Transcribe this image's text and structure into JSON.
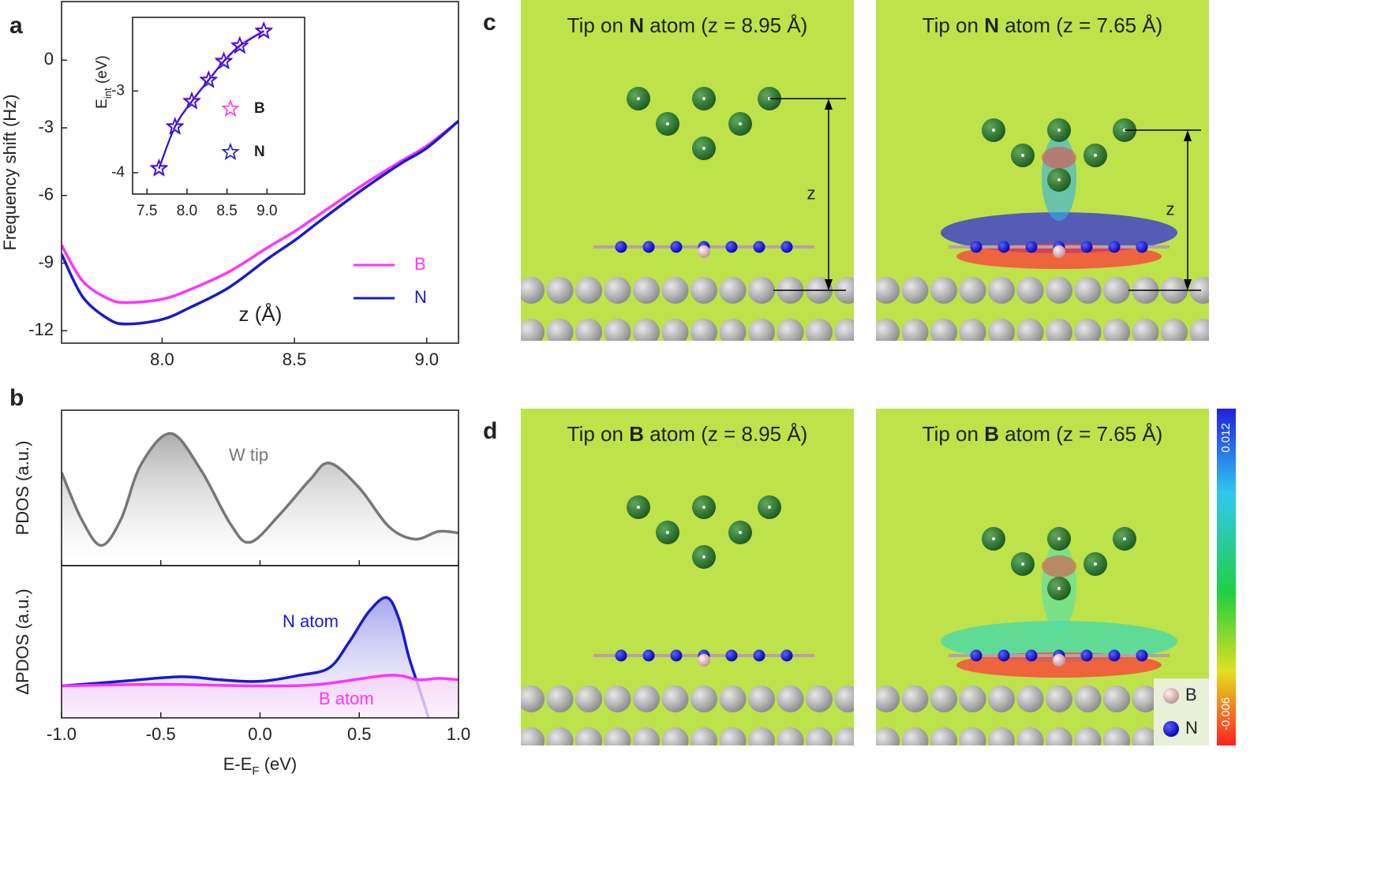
{
  "panel_labels": [
    "a",
    "b",
    "c",
    "d"
  ],
  "chart_data": [
    {
      "type": "line",
      "xlabel": "z (Å)",
      "ylabel": "Frequency shift (Hz)",
      "x": [
        7.62,
        7.7,
        7.8,
        7.87,
        8.0,
        8.1,
        8.25,
        8.4,
        8.5,
        8.6,
        8.75,
        8.9,
        9.0,
        9.12
      ],
      "series": [
        {
          "name": "B",
          "color": "#ff33ff",
          "values": [
            -8.2,
            -9.8,
            -10.6,
            -10.75,
            -10.6,
            -10.2,
            -9.4,
            -8.3,
            -7.6,
            -6.8,
            -5.6,
            -4.5,
            -3.8,
            -2.7
          ]
        },
        {
          "name": "N",
          "color": "#1a1acc",
          "values": [
            -8.6,
            -10.5,
            -11.5,
            -11.7,
            -11.5,
            -11.0,
            -10.1,
            -8.8,
            -8.0,
            -7.1,
            -5.8,
            -4.6,
            -3.9,
            -2.7
          ]
        }
      ],
      "xlim": [
        7.62,
        9.12
      ],
      "ylim": [
        -12.55,
        2.6
      ],
      "xticks": [
        {
          "value": 8.0,
          "label": "8.0"
        },
        8.5,
        {
          "value": 9.0,
          "label": "9.0"
        }
      ],
      "yticks": [
        0,
        -3,
        -6,
        -9,
        -12
      ],
      "legend": "lower right"
    },
    {
      "type": "line",
      "marker": "star",
      "ylabel": [
        "E",
        "int",
        " (eV)"
      ],
      "x": [
        7.65,
        7.85,
        8.06,
        8.27,
        8.46,
        8.66,
        8.96
      ],
      "series": [
        {
          "name": "B",
          "color": "#ff33ff",
          "values": [
            -3.94,
            -3.43,
            -3.12,
            -2.86,
            -2.63,
            -2.44,
            -2.26
          ]
        },
        {
          "name": "N",
          "color": "#1a1acc",
          "values": [
            -3.95,
            -3.44,
            -3.13,
            -2.87,
            -2.64,
            -2.45,
            -2.27
          ]
        }
      ],
      "xlim": [
        7.32,
        9.47
      ],
      "ylim": [
        -4.26,
        -2.1
      ],
      "xticks": [
        7.5,
        {
          "value": 8.0,
          "label": "8.0"
        },
        8.5,
        {
          "value": 9.0,
          "label": "9.0"
        }
      ],
      "yticks": [
        -3,
        -4
      ],
      "legend": "center right"
    },
    {
      "type": "area",
      "ylabel": "PDOS (a.u.)",
      "annotation": "W tip",
      "x": [
        -1.0,
        -0.9,
        -0.8,
        -0.7,
        -0.6,
        -0.45,
        -0.3,
        -0.15,
        -0.05,
        0.1,
        0.25,
        0.35,
        0.5,
        0.65,
        0.78,
        0.9,
        1.0
      ],
      "series": [
        {
          "name": "W tip",
          "color": "#777777",
          "values": [
            0.6,
            0.3,
            0.13,
            0.3,
            0.65,
            0.85,
            0.62,
            0.27,
            0.15,
            0.33,
            0.55,
            0.66,
            0.5,
            0.25,
            0.17,
            0.22,
            0.21
          ]
        }
      ],
      "xlim": [
        -1.0,
        1.0
      ],
      "ylim": [
        0,
        1
      ]
    },
    {
      "type": "area",
      "ylabel": "ΔPDOS (a.u.)",
      "xlabel": [
        "E-E",
        "F",
        " (eV)"
      ],
      "series": [
        {
          "name": "N atom",
          "color": "#1a1acc",
          "x": [
            -1.0,
            -0.7,
            -0.4,
            -0.2,
            0.0,
            0.2,
            0.35,
            0.45,
            0.55,
            0.64,
            0.7,
            0.75,
            0.8,
            0.85
          ],
          "values": [
            0.21,
            0.24,
            0.27,
            0.25,
            0.24,
            0.28,
            0.33,
            0.5,
            0.7,
            0.79,
            0.65,
            0.4,
            0.2,
            0.0
          ]
        },
        {
          "name": "B atom",
          "color": "#ff33ff",
          "x": [
            -1.0,
            -0.5,
            0.0,
            0.3,
            0.65,
            0.8,
            0.9,
            1.0
          ],
          "values": [
            0.21,
            0.22,
            0.21,
            0.22,
            0.28,
            0.25,
            0.26,
            0.25
          ]
        }
      ],
      "xlim": [
        -1.0,
        1.0
      ],
      "ylim": [
        0,
        1
      ],
      "xticks": [
        {
          "value": -1.0,
          "label": "-1.0"
        },
        {
          "value": -0.5,
          "label": "-0.5"
        },
        {
          "value": 0.0,
          "label": "0.0"
        },
        0.5,
        {
          "value": 1.0,
          "label": "1.0"
        }
      ]
    }
  ],
  "maps": [
    {
      "title": [
        "Tip on ",
        "N",
        " atom (z = 8.95 Å)"
      ],
      "z_label": "z"
    },
    {
      "title": [
        "Tip on ",
        "N",
        " atom (z = 7.65 Å)"
      ],
      "z_label": "z"
    },
    {
      "title": [
        "Tip on ",
        "B",
        " atom (z = 8.95 Å)"
      ]
    },
    {
      "title": [
        "Tip on ",
        "B",
        " atom (z = 7.65 Å)"
      ]
    }
  ],
  "colorbar": {
    "labels": [
      "0.012",
      "-0.006"
    ]
  },
  "atom_legend": [
    "B",
    "N"
  ]
}
